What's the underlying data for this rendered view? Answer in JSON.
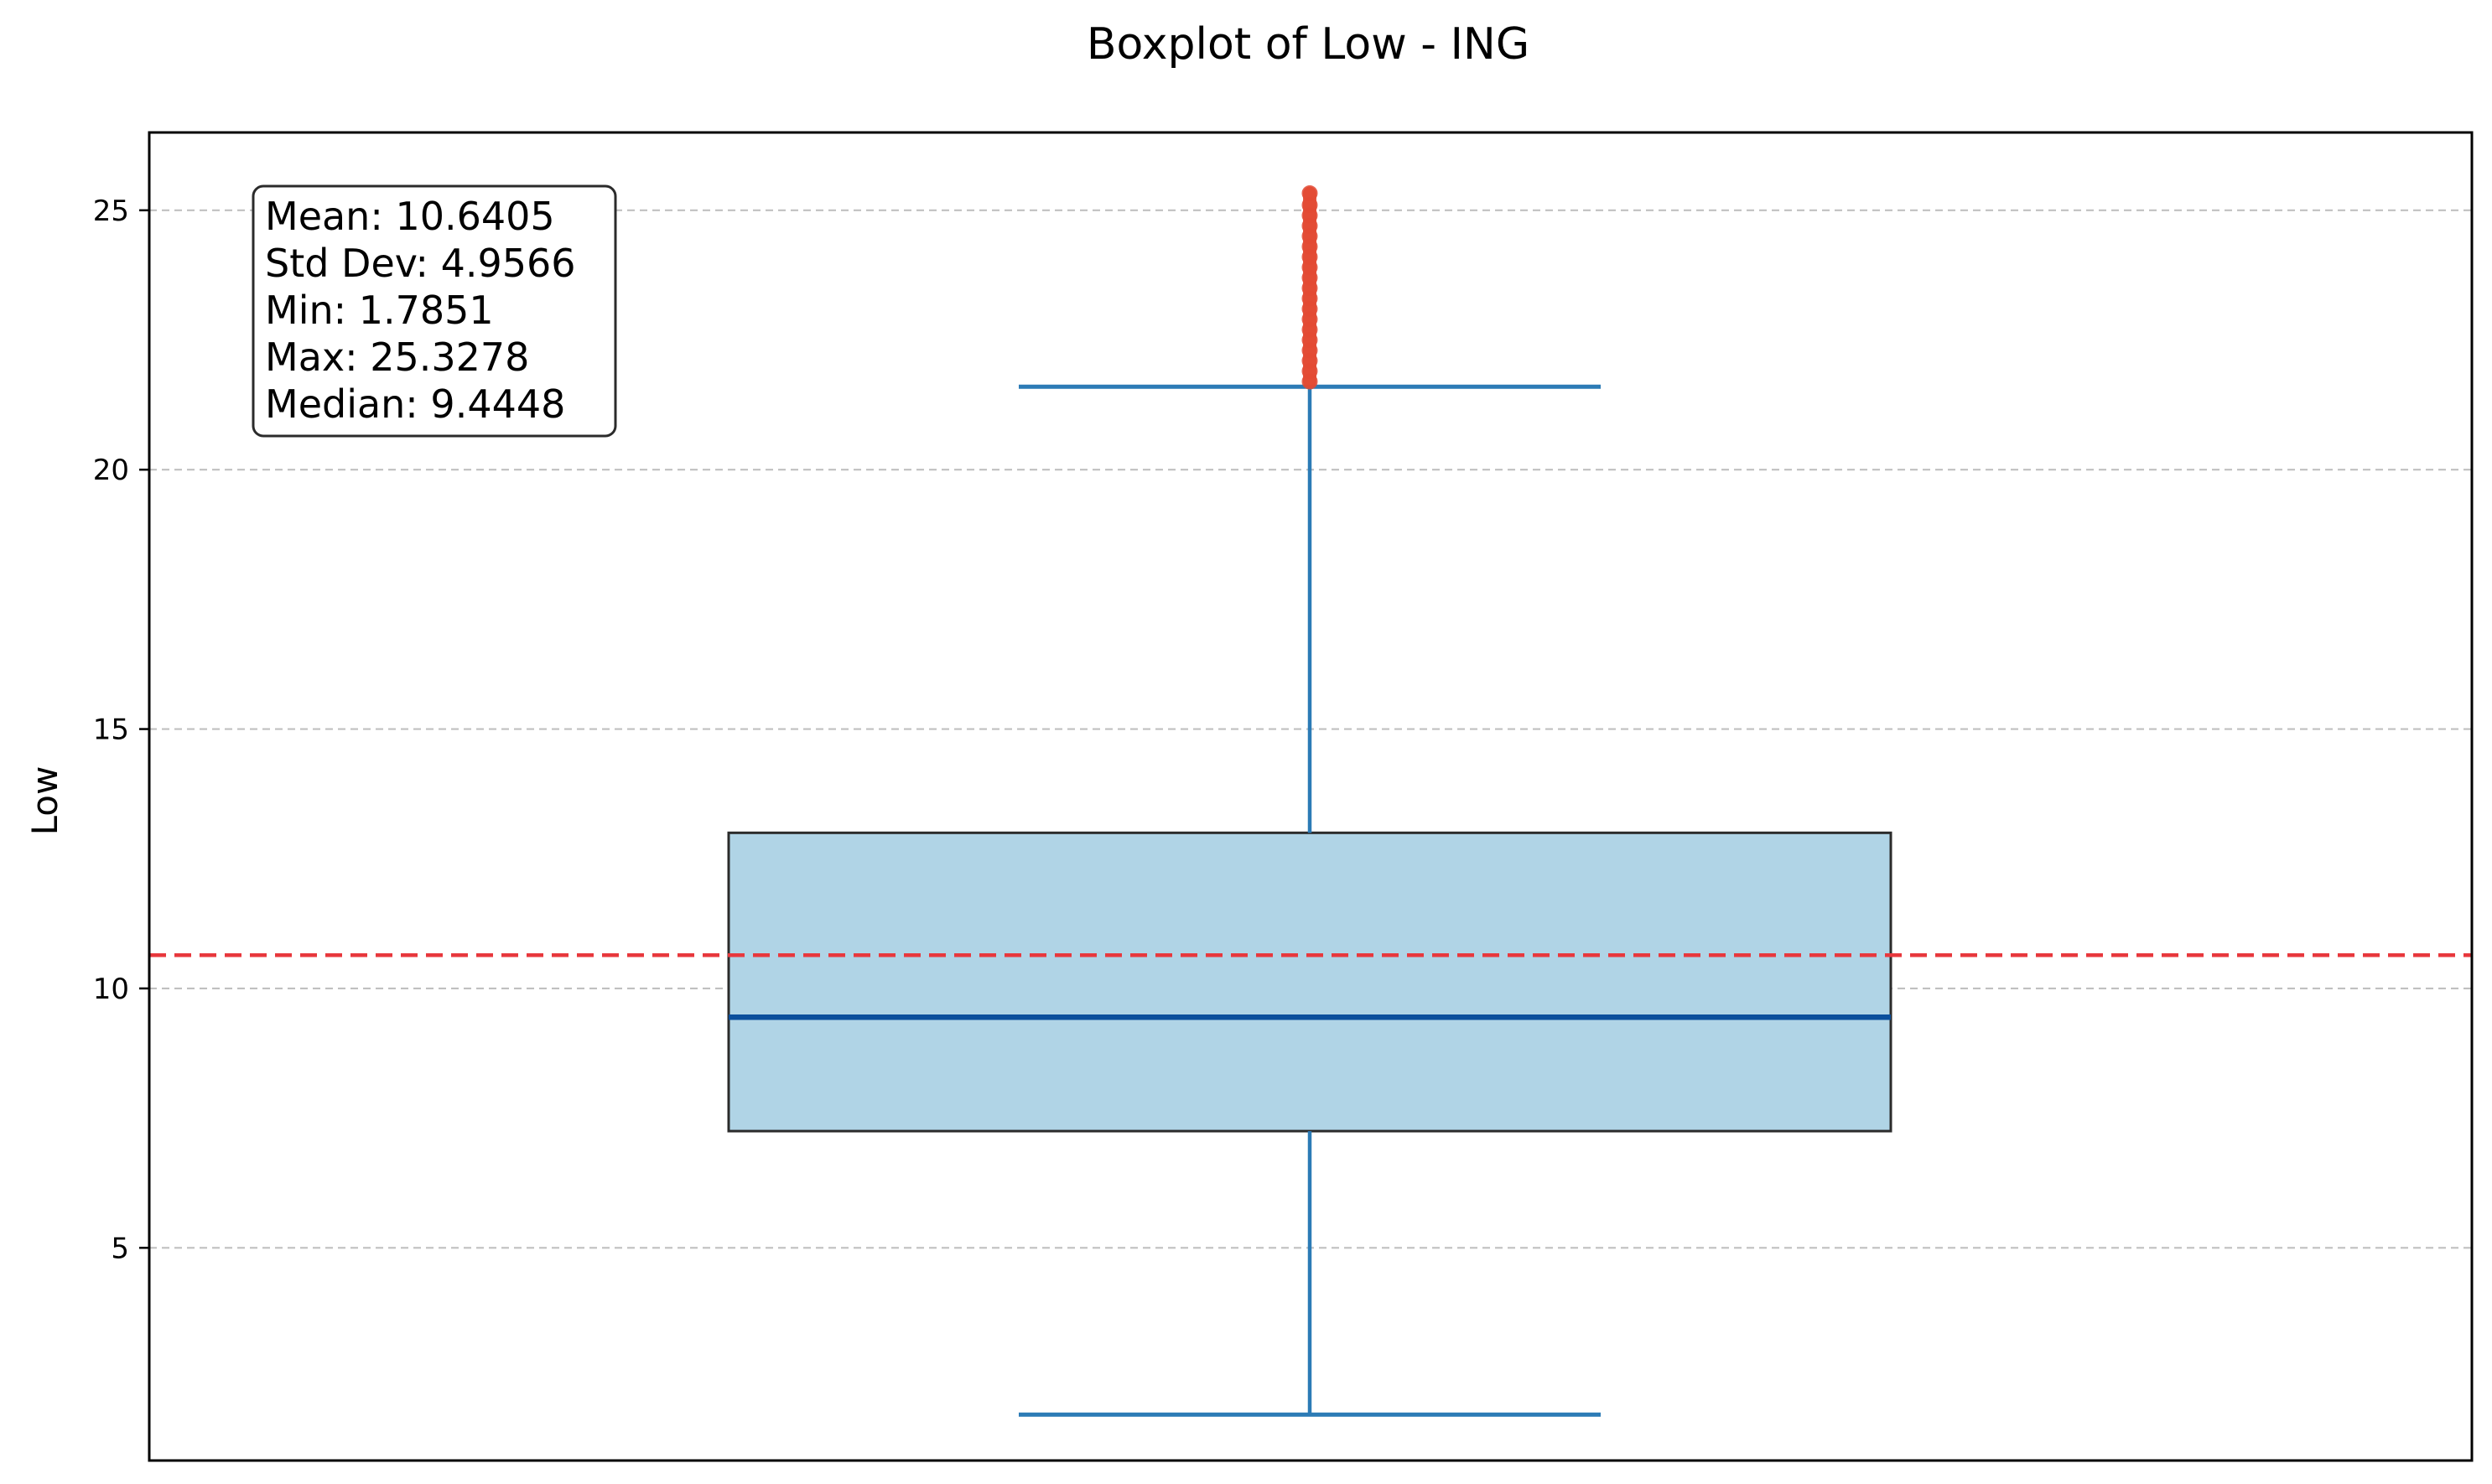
{
  "chart_data": {
    "type": "box",
    "title": "Boxplot of Low - ING",
    "ylabel": "Low",
    "xlabel": "",
    "ylim": [
      0.9,
      26.5
    ],
    "yticks": [
      5,
      10,
      15,
      20,
      25
    ],
    "grid": {
      "y": true,
      "x": false,
      "style": "dashed"
    },
    "box": {
      "whisker_low": 1.7851,
      "q1": 7.25,
      "median": 9.4448,
      "q3": 13.0,
      "whisker_high": 21.6,
      "mean": 10.6405
    },
    "outliers": [
      21.7,
      21.9,
      22.1,
      22.3,
      22.5,
      22.7,
      22.9,
      23.1,
      23.3,
      23.5,
      23.7,
      23.9,
      24.1,
      24.3,
      24.5,
      24.7,
      24.9,
      25.1,
      25.3278
    ],
    "mean_line": {
      "value": 10.6405,
      "color": "#e8383d",
      "style": "dashed"
    },
    "stats_box": {
      "position": "top-left",
      "lines": [
        "Mean: 10.6405",
        "Std Dev: 4.9566",
        "Min: 1.7851",
        "Max: 25.3278",
        "Median: 9.4448"
      ]
    },
    "colors": {
      "box_fill": "#b0d4e6",
      "box_edge": "#2b2b2b",
      "whisker": "#2c7bb6",
      "median": "#0b4f9c",
      "outlier": "#e34a33",
      "mean_line": "#e8383d",
      "grid": "#c0c0c0"
    }
  }
}
